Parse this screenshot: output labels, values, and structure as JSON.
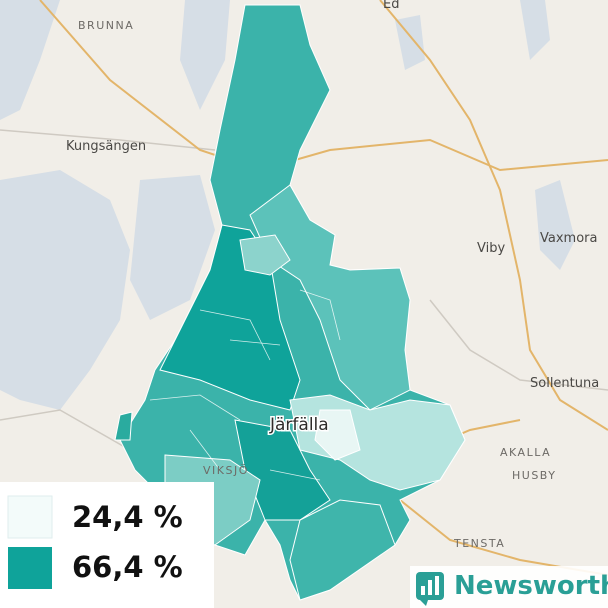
{
  "map": {
    "labels": [
      {
        "text": "BRUNNA",
        "kind": "district"
      },
      {
        "text": "Kungsängen",
        "kind": "town"
      },
      {
        "text": "Ed",
        "kind": "town"
      },
      {
        "text": "Viby",
        "kind": "town"
      },
      {
        "text": "Vaxmora",
        "kind": "town"
      },
      {
        "text": "Sollentuna",
        "kind": "town"
      },
      {
        "text": "Järfälla",
        "kind": "main"
      },
      {
        "text": "VIKSJÖ",
        "kind": "district"
      },
      {
        "text": "AKALLA",
        "kind": "district"
      },
      {
        "text": "HUSBY",
        "kind": "district"
      },
      {
        "text": "TENSTA",
        "kind": "district"
      }
    ]
  },
  "legend": {
    "items": [
      {
        "label": "24,4 %",
        "color": "#f3fbfa"
      },
      {
        "label": "66,4 %",
        "color": "#0fa39a"
      }
    ]
  },
  "brand": {
    "name": "Newsworthy"
  }
}
